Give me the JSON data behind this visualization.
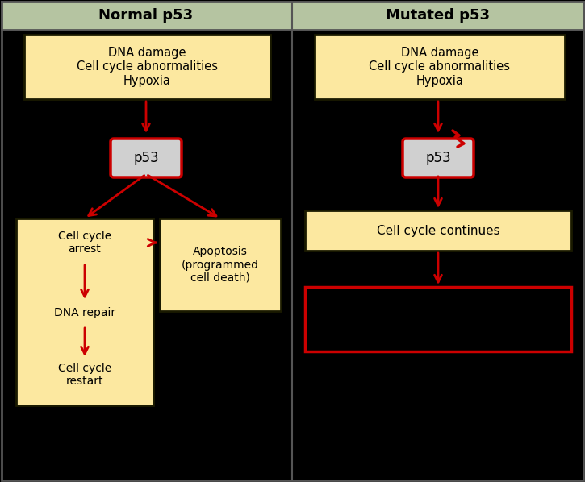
{
  "bg_color": "#000000",
  "header_color": "#b5c4a1",
  "box_fill_yellow": "#fce8a0",
  "box_fill_gray": "#d0d0d0",
  "box_edge_dark": "#1a1a00",
  "box_edge_red": "#cc0000",
  "arrow_color": "#cc0000",
  "text_color": "#000000",
  "header_text_color": "#000000",
  "divider_color": "#555555",
  "left_title": "Normal p53",
  "right_title": "Mutated p53",
  "input_text": "DNA damage\nCell cycle abnormalities\nHypoxia",
  "left_p53_text": "p53",
  "right_p53_text": "p53",
  "left_arrest_text": "Cell cycle\narrest",
  "left_apoptosis_text": "Apoptosis\n(programmed\ncell death)",
  "left_repair_text": "DNA repair",
  "left_restart_text": "Cell cycle\nrestart",
  "right_continues_text": "Cell cycle continues"
}
